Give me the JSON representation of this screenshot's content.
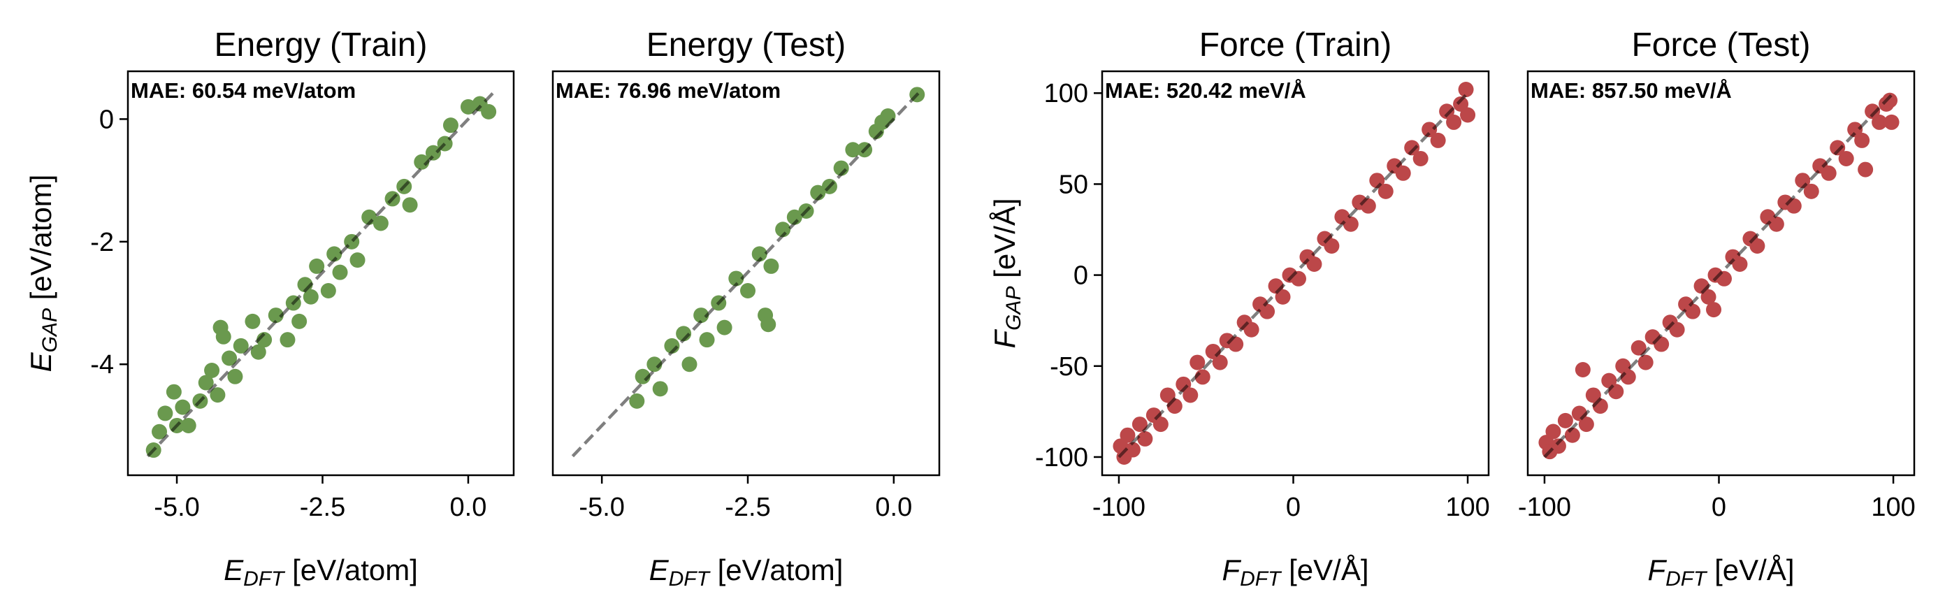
{
  "colors": {
    "energy": "#6A994E",
    "force": "#BC4749",
    "identity_line": "#000000"
  },
  "chart_data": [
    {
      "type": "scatter",
      "title": "Energy (Train)",
      "annotation": "MAE: 60.54 meV/atom",
      "xlabel": {
        "sym": "E",
        "sub": "DFT",
        "unit": " [eV/atom]"
      },
      "ylabel": {
        "sym": "E",
        "sub": "GAP",
        "unit": " [eV/atom]"
      },
      "xlim": [
        -5.84,
        0.78
      ],
      "ylim": [
        -5.81,
        0.78
      ],
      "xticks": [
        {
          "v": -5.0,
          "label": "-5.0"
        },
        {
          "v": -2.5,
          "label": "-2.5"
        },
        {
          "v": 0.0,
          "label": "0.0"
        }
      ],
      "yticks": [
        {
          "v": 0,
          "label": "0"
        },
        {
          "v": -2,
          "label": "-2"
        },
        {
          "v": -4,
          "label": "-4"
        }
      ],
      "show_yticks": true,
      "color": "energy",
      "identity": [
        -5.5,
        0.42
      ],
      "points": [
        [
          -5.4,
          -5.4
        ],
        [
          -5.3,
          -5.1
        ],
        [
          -5.2,
          -4.8
        ],
        [
          -5.05,
          -4.45
        ],
        [
          -5.0,
          -5.0
        ],
        [
          -4.9,
          -4.7
        ],
        [
          -4.8,
          -5.0
        ],
        [
          -4.6,
          -4.6
        ],
        [
          -4.5,
          -4.3
        ],
        [
          -4.4,
          -4.1
        ],
        [
          -4.3,
          -4.5
        ],
        [
          -4.25,
          -3.4
        ],
        [
          -4.2,
          -3.55
        ],
        [
          -4.1,
          -3.9
        ],
        [
          -4.0,
          -4.2
        ],
        [
          -3.9,
          -3.7
        ],
        [
          -3.7,
          -3.3
        ],
        [
          -3.6,
          -3.8
        ],
        [
          -3.5,
          -3.6
        ],
        [
          -3.3,
          -3.2
        ],
        [
          -3.1,
          -3.6
        ],
        [
          -3.0,
          -3.0
        ],
        [
          -2.9,
          -3.3
        ],
        [
          -2.7,
          -2.9
        ],
        [
          -2.8,
          -2.7
        ],
        [
          -2.6,
          -2.4
        ],
        [
          -2.4,
          -2.8
        ],
        [
          -2.3,
          -2.2
        ],
        [
          -2.2,
          -2.5
        ],
        [
          -2.0,
          -2.0
        ],
        [
          -1.9,
          -2.3
        ],
        [
          -1.7,
          -1.6
        ],
        [
          -1.5,
          -1.7
        ],
        [
          -1.3,
          -1.3
        ],
        [
          -1.1,
          -1.1
        ],
        [
          -1.0,
          -1.4
        ],
        [
          -0.8,
          -0.7
        ],
        [
          -0.6,
          -0.55
        ],
        [
          -0.4,
          -0.4
        ],
        [
          -0.3,
          -0.1
        ],
        [
          0.0,
          0.2
        ],
        [
          0.2,
          0.25
        ],
        [
          0.35,
          0.12
        ]
      ]
    },
    {
      "type": "scatter",
      "title": "Energy (Test)",
      "annotation": "MAE: 76.96 meV/atom",
      "xlabel": {
        "sym": "E",
        "sub": "DFT",
        "unit": " [eV/atom]"
      },
      "xlim": [
        -5.84,
        0.78
      ],
      "ylim": [
        -5.81,
        0.78
      ],
      "xticks": [
        {
          "v": -5.0,
          "label": "-5.0"
        },
        {
          "v": -2.5,
          "label": "-2.5"
        },
        {
          "v": 0.0,
          "label": "0.0"
        }
      ],
      "yticks": [],
      "show_yticks": false,
      "color": "energy",
      "identity": [
        -5.5,
        0.42
      ],
      "points": [
        [
          -4.4,
          -4.6
        ],
        [
          -4.3,
          -4.2
        ],
        [
          -4.1,
          -4.0
        ],
        [
          -4.0,
          -4.4
        ],
        [
          -3.8,
          -3.7
        ],
        [
          -3.6,
          -3.5
        ],
        [
          -3.5,
          -4.0
        ],
        [
          -3.3,
          -3.2
        ],
        [
          -3.2,
          -3.6
        ],
        [
          -3.0,
          -3.0
        ],
        [
          -2.9,
          -3.4
        ],
        [
          -2.7,
          -2.6
        ],
        [
          -2.5,
          -2.8
        ],
        [
          -2.3,
          -2.2
        ],
        [
          -2.2,
          -3.2
        ],
        [
          -2.15,
          -3.35
        ],
        [
          -2.1,
          -2.4
        ],
        [
          -1.9,
          -1.8
        ],
        [
          -1.7,
          -1.6
        ],
        [
          -1.5,
          -1.5
        ],
        [
          -1.3,
          -1.2
        ],
        [
          -1.1,
          -1.1
        ],
        [
          -0.9,
          -0.8
        ],
        [
          -0.7,
          -0.5
        ],
        [
          -0.5,
          -0.5
        ],
        [
          -0.3,
          -0.2
        ],
        [
          -0.2,
          -0.05
        ],
        [
          -0.1,
          0.05
        ],
        [
          0.4,
          0.4
        ]
      ]
    },
    {
      "type": "scatter",
      "title": "Force (Train)",
      "annotation": "MAE: 520.42 meV/Å",
      "xlabel": {
        "sym": "F",
        "sub": "DFT",
        "unit": " [eV/Å]"
      },
      "ylabel": {
        "sym": "F",
        "sub": "GAP",
        "unit": " [eV/Å]"
      },
      "xlim": [
        -109.6,
        112
      ],
      "ylim": [
        -110,
        112
      ],
      "xticks": [
        {
          "v": -100,
          "label": "-100"
        },
        {
          "v": 0,
          "label": "0"
        },
        {
          "v": 100,
          "label": "100"
        }
      ],
      "yticks": [
        {
          "v": 100,
          "label": "100"
        },
        {
          "v": 50,
          "label": "50"
        },
        {
          "v": 0,
          "label": "0"
        },
        {
          "v": -50,
          "label": "-50"
        },
        {
          "v": -100,
          "label": "-100"
        }
      ],
      "show_yticks": true,
      "color": "force",
      "identity": [
        -100,
        100
      ],
      "points": [
        [
          -99,
          -94
        ],
        [
          -97,
          -100
        ],
        [
          -95,
          -88
        ],
        [
          -92,
          -96
        ],
        [
          -88,
          -82
        ],
        [
          -85,
          -90
        ],
        [
          -80,
          -77
        ],
        [
          -76,
          -82
        ],
        [
          -72,
          -66
        ],
        [
          -68,
          -72
        ],
        [
          -63,
          -60
        ],
        [
          -59,
          -66
        ],
        [
          -55,
          -48
        ],
        [
          -52,
          -56
        ],
        [
          -46,
          -42
        ],
        [
          -42,
          -48
        ],
        [
          -38,
          -36
        ],
        [
          -33,
          -38
        ],
        [
          -28,
          -26
        ],
        [
          -24,
          -30
        ],
        [
          -19,
          -16
        ],
        [
          -15,
          -20
        ],
        [
          -10,
          -6
        ],
        [
          -6,
          -12
        ],
        [
          -2,
          0
        ],
        [
          3,
          -2
        ],
        [
          8,
          10
        ],
        [
          12,
          6
        ],
        [
          18,
          20
        ],
        [
          22,
          16
        ],
        [
          28,
          32
        ],
        [
          33,
          28
        ],
        [
          38,
          40
        ],
        [
          43,
          38
        ],
        [
          48,
          52
        ],
        [
          53,
          46
        ],
        [
          58,
          60
        ],
        [
          63,
          56
        ],
        [
          68,
          70
        ],
        [
          73,
          64
        ],
        [
          78,
          80
        ],
        [
          83,
          74
        ],
        [
          88,
          90
        ],
        [
          92,
          84
        ],
        [
          96,
          94
        ],
        [
          99,
          102
        ],
        [
          100,
          88
        ]
      ]
    },
    {
      "type": "scatter",
      "title": "Force (Test)",
      "annotation": "MAE: 857.50 meV/Å",
      "xlabel": {
        "sym": "F",
        "sub": "DFT",
        "unit": " [eV/Å]"
      },
      "xlim": [
        -109.6,
        112
      ],
      "ylim": [
        -110,
        112
      ],
      "xticks": [
        {
          "v": -100,
          "label": "-100"
        },
        {
          "v": 0,
          "label": "0"
        },
        {
          "v": 100,
          "label": "100"
        }
      ],
      "yticks": [],
      "show_yticks": false,
      "color": "force",
      "identity": [
        -100,
        100
      ],
      "points": [
        [
          -99,
          -92
        ],
        [
          -97,
          -97
        ],
        [
          -95,
          -86
        ],
        [
          -92,
          -94
        ],
        [
          -88,
          -80
        ],
        [
          -84,
          -88
        ],
        [
          -80,
          -76
        ],
        [
          -78,
          -52
        ],
        [
          -76,
          -82
        ],
        [
          -72,
          -66
        ],
        [
          -68,
          -72
        ],
        [
          -63,
          -58
        ],
        [
          -59,
          -64
        ],
        [
          -55,
          -50
        ],
        [
          -52,
          -56
        ],
        [
          -46,
          -40
        ],
        [
          -42,
          -48
        ],
        [
          -38,
          -34
        ],
        [
          -33,
          -38
        ],
        [
          -28,
          -26
        ],
        [
          -24,
          -30
        ],
        [
          -19,
          -16
        ],
        [
          -15,
          -20
        ],
        [
          -10,
          -6
        ],
        [
          -6,
          -12
        ],
        [
          -3,
          -19
        ],
        [
          -2,
          0
        ],
        [
          3,
          -2
        ],
        [
          8,
          10
        ],
        [
          12,
          6
        ],
        [
          18,
          20
        ],
        [
          22,
          16
        ],
        [
          28,
          32
        ],
        [
          33,
          28
        ],
        [
          38,
          40
        ],
        [
          43,
          38
        ],
        [
          48,
          52
        ],
        [
          53,
          46
        ],
        [
          58,
          60
        ],
        [
          63,
          56
        ],
        [
          68,
          70
        ],
        [
          73,
          64
        ],
        [
          78,
          80
        ],
        [
          82,
          74
        ],
        [
          84,
          58
        ],
        [
          88,
          90
        ],
        [
          92,
          84
        ],
        [
          96,
          94
        ],
        [
          98,
          96
        ],
        [
          99,
          84
        ]
      ]
    }
  ]
}
